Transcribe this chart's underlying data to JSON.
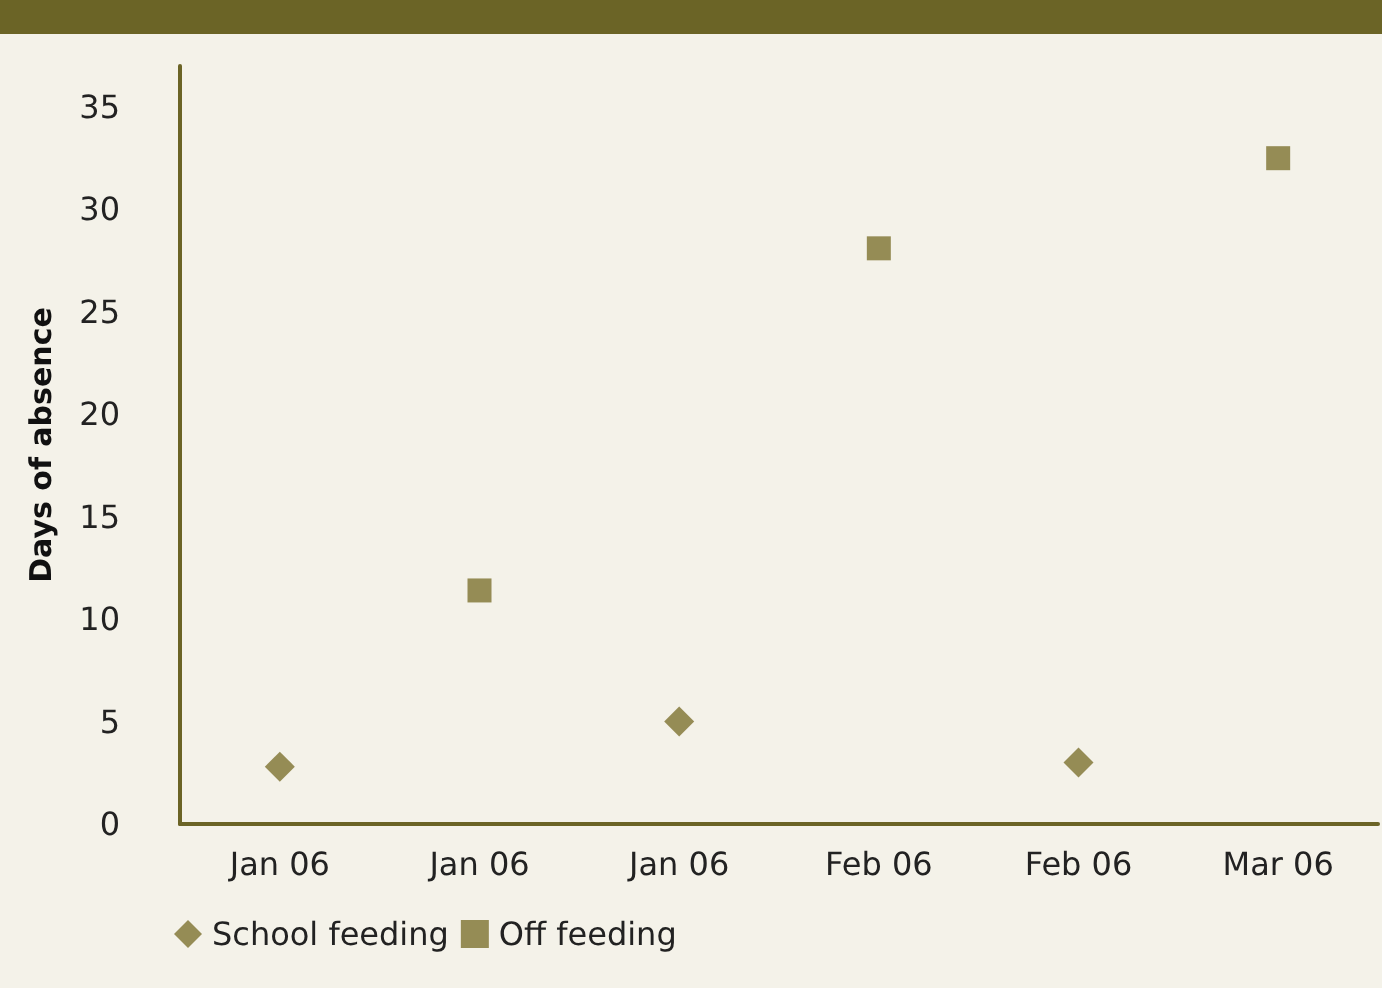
{
  "chart_data": {
    "type": "scatter",
    "ylabel": "Days of absence",
    "categories": [
      "Jan 06",
      "Jan 06",
      "Jan 06",
      "Feb 06",
      "Feb 06",
      "Mar 06"
    ],
    "series": [
      {
        "name": "School feeding",
        "color": "#7d7230",
        "marker": "diamond",
        "values": [
          2.8,
          null,
          5,
          null,
          3,
          null
        ]
      },
      {
        "name": "Off feeding",
        "color": "#7d7230",
        "marker": "square",
        "values": [
          null,
          11.4,
          null,
          28.1,
          null,
          32.5
        ]
      }
    ],
    "ylim": [
      0,
      37
    ],
    "yticks": [
      0,
      5,
      10,
      15,
      20,
      25,
      30,
      35
    ],
    "grid": false,
    "legend": "bottom left"
  }
}
